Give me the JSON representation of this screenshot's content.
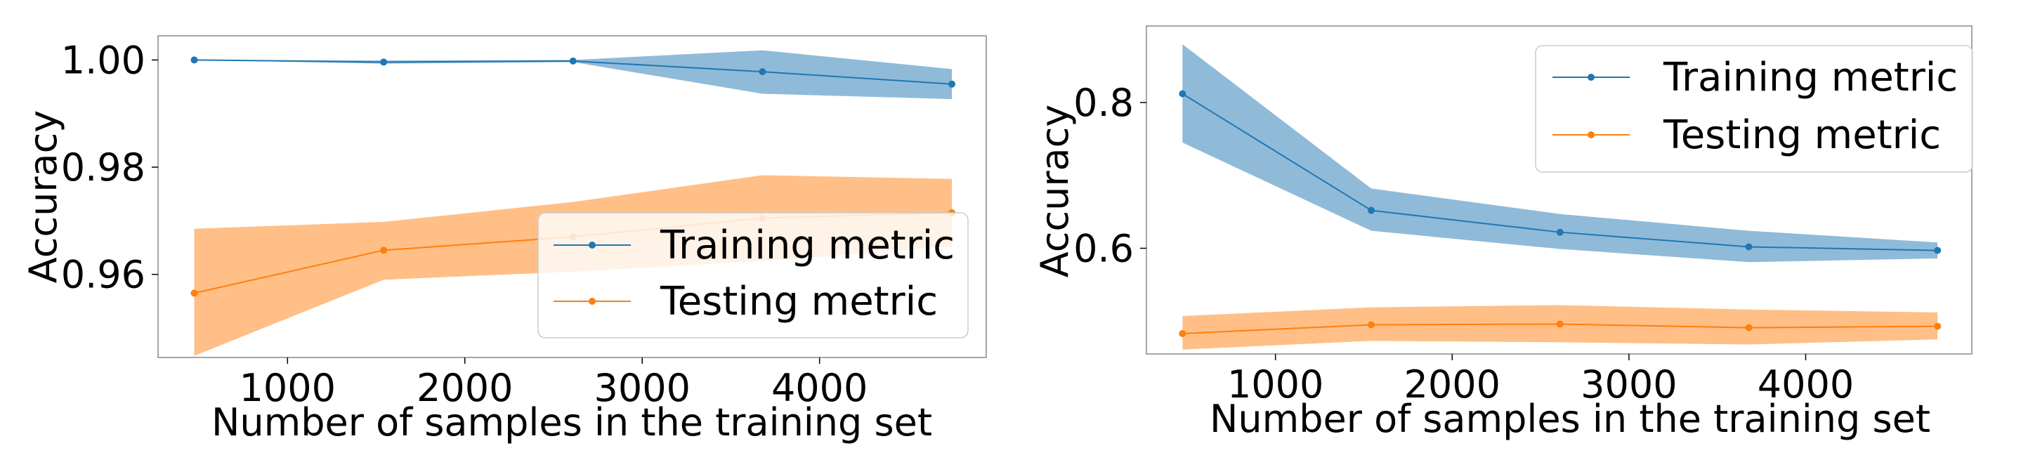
{
  "chart_data": [
    {
      "type": "line",
      "title": "",
      "xlabel": "Number of samples in the training set",
      "ylabel": "Accuracy",
      "xlim": [
        270,
        4940
      ],
      "ylim": [
        0.9445,
        1.0045
      ],
      "xticks": [
        1000,
        2000,
        3000,
        4000
      ],
      "xtick_labels": [
        "1000",
        "2000",
        "3000",
        "4000"
      ],
      "yticks": [
        0.96,
        0.98,
        1.0
      ],
      "ytick_labels": [
        "0.96",
        "0.98",
        "1.00"
      ],
      "legend_position": "lower-right",
      "series": [
        {
          "name": "Training metric",
          "color": "#1f77b4",
          "x": [
            474,
            1542,
            2610,
            3678,
            4746
          ],
          "values": [
            1.0,
            0.9996,
            0.9998,
            0.9978,
            0.9955
          ],
          "upper": [
            1.0,
            0.9999,
            1.0,
            1.0018,
            0.9983
          ],
          "lower": [
            1.0,
            0.9993,
            0.9996,
            0.9937,
            0.9927
          ]
        },
        {
          "name": "Testing metric",
          "color": "#ff7f0e",
          "x": [
            474,
            1542,
            2610,
            3678,
            4746
          ],
          "values": [
            0.9565,
            0.9645,
            0.967,
            0.9705,
            0.9715
          ],
          "upper": [
            0.9685,
            0.9698,
            0.9735,
            0.9785,
            0.9778
          ],
          "lower": [
            0.9448,
            0.959,
            0.9605,
            0.9625,
            0.9652
          ]
        }
      ]
    },
    {
      "type": "line",
      "title": "",
      "xlabel": "Number of samples in the training set",
      "ylabel": "Accuracy",
      "xlim": [
        270,
        4940
      ],
      "ylim": [
        0.455,
        0.905
      ],
      "xticks": [
        1000,
        2000,
        3000,
        4000
      ],
      "xtick_labels": [
        "1000",
        "2000",
        "3000",
        "4000"
      ],
      "yticks": [
        0.6,
        0.8
      ],
      "ytick_labels": [
        "0.6",
        "0.8"
      ],
      "legend_position": "upper-right",
      "series": [
        {
          "name": "Training metric",
          "color": "#1f77b4",
          "x": [
            474,
            1542,
            2610,
            3678,
            4746
          ],
          "values": [
            0.812,
            0.652,
            0.622,
            0.602,
            0.597
          ],
          "upper": [
            0.88,
            0.682,
            0.647,
            0.624,
            0.608
          ],
          "lower": [
            0.745,
            0.624,
            0.599,
            0.581,
            0.586
          ]
        },
        {
          "name": "Testing metric",
          "color": "#ff7f0e",
          "x": [
            474,
            1542,
            2610,
            3678,
            4746
          ],
          "values": [
            0.483,
            0.495,
            0.496,
            0.491,
            0.493
          ],
          "upper": [
            0.507,
            0.519,
            0.522,
            0.516,
            0.512
          ],
          "lower": [
            0.461,
            0.473,
            0.471,
            0.468,
            0.475
          ]
        }
      ]
    }
  ]
}
